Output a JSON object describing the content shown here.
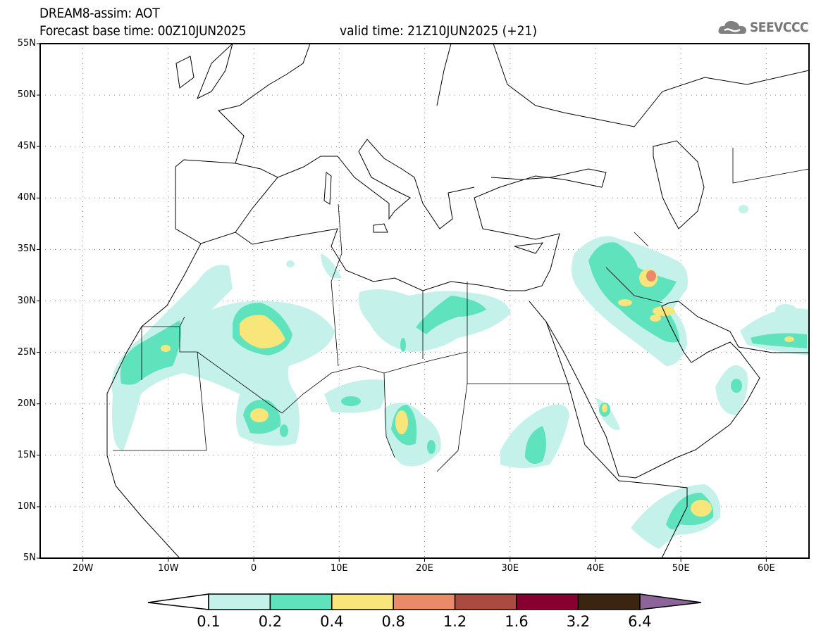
{
  "header": {
    "title": "DREAM8-assim: AOT",
    "base_time": "Forecast base time: 00Z10JUN2025",
    "valid_time": "valid time: 21Z10JUN2025 (+21)",
    "logo_text": "SEEVCCC"
  },
  "map": {
    "lat_labels": [
      "55N",
      "50N",
      "45N",
      "40N",
      "35N",
      "30N",
      "25N",
      "20N",
      "15N",
      "10N",
      "5N"
    ],
    "lon_labels": [
      "20W",
      "10W",
      "0",
      "10E",
      "20E",
      "30E",
      "40E",
      "50E",
      "60E"
    ],
    "extent": {
      "lon": [
        -25,
        65
      ],
      "lat": [
        5,
        55
      ]
    }
  },
  "colorbar": {
    "labels": [
      "0.1",
      "0.2",
      "0.4",
      "0.8",
      "1.2",
      "1.6",
      "3.2",
      "6.4"
    ],
    "colors": [
      "#ffffff",
      "#c4f2ea",
      "#5fe3bd",
      "#f8e67a",
      "#ea8a68",
      "#ab4a40",
      "#870030",
      "#3c2510",
      "#8c6498"
    ]
  }
}
